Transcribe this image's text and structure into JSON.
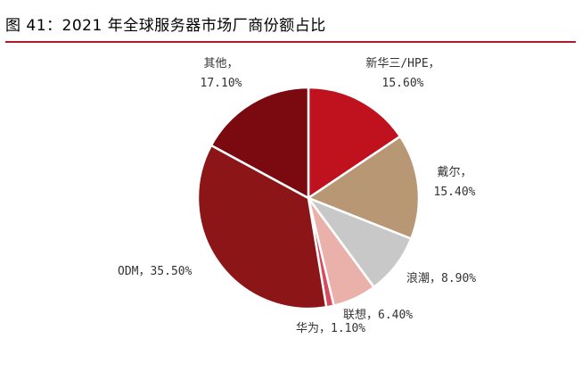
{
  "header": {
    "title": "图 41：2021 年全球服务器市场厂商份额占比"
  },
  "chart_data": {
    "type": "pie",
    "title": "图 41：2021 年全球服务器市场厂商份额占比",
    "slices": [
      {
        "label": "新华三/HPE",
        "value": 15.6,
        "value_label": "15.60%",
        "color": "#c0111f"
      },
      {
        "label": "戴尔",
        "value": 15.4,
        "value_label": "15.40%",
        "color": "#b89774"
      },
      {
        "label": "浪潮",
        "value": 8.9,
        "value_label": "8.90%",
        "color": "#c8c8c8"
      },
      {
        "label": "联想",
        "value": 6.4,
        "value_label": "6.40%",
        "color": "#eab1aa"
      },
      {
        "label": "华为",
        "value": 1.1,
        "value_label": "1.10%",
        "color": "#d84a5e"
      },
      {
        "label": "ODM",
        "value": 35.5,
        "value_label": "35.50%",
        "color": "#8c1518"
      },
      {
        "label": "其他",
        "value": 17.1,
        "value_label": "17.10%",
        "color": "#7a0a10"
      }
    ],
    "start_angle_deg": 0,
    "direction": "clockwise",
    "legend": "none"
  },
  "colors": {
    "accent_rule": "#b2182b"
  }
}
